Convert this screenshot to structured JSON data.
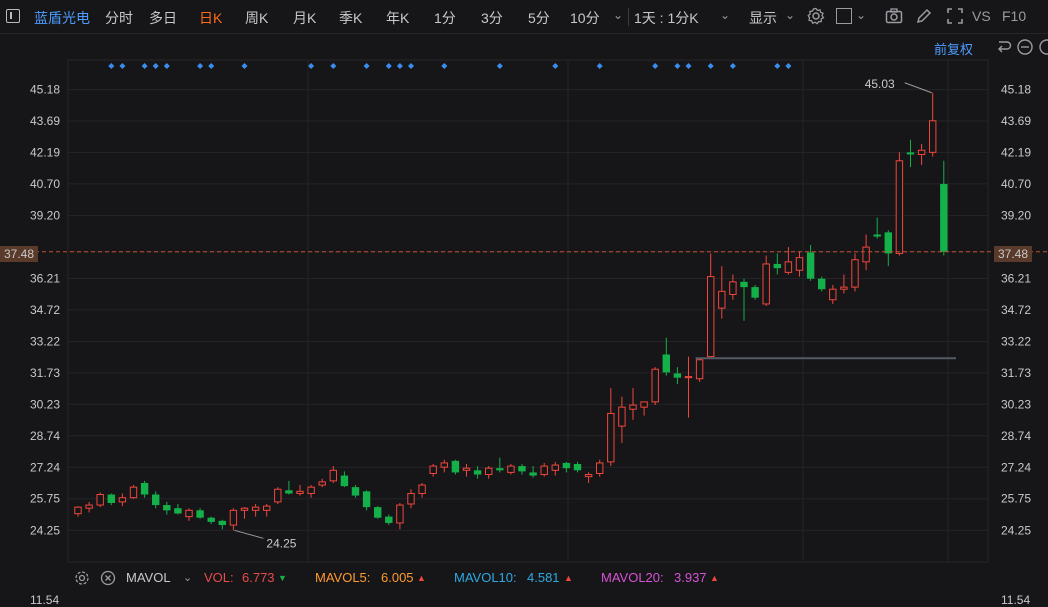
{
  "toolbar": {
    "stock_name": "蓝盾光电",
    "periods": [
      "分时",
      "多日",
      "日K",
      "周K",
      "月K",
      "季K",
      "年K",
      "1分",
      "3分",
      "5分",
      "10分"
    ],
    "active_period": "日K",
    "interval_dropdown": "1天 : 1分K",
    "display_label": "显示",
    "vs_label": "VS",
    "f10_label": "F10"
  },
  "adjust_label": "前复权",
  "colors": {
    "up": "#f0463c",
    "down": "#14b04a",
    "accent": "#ff6a1a",
    "link": "#4d9cff",
    "grid": "#242428",
    "last_line": "#c4502e",
    "dot": "#3a8df0"
  },
  "chart_data": {
    "type": "candlestick",
    "ylim": [
      23.5,
      45.9
    ],
    "y_ticks": [
      "45.18",
      "43.69",
      "42.19",
      "40.70",
      "39.20",
      "37.48",
      "36.21",
      "34.72",
      "33.22",
      "31.73",
      "30.23",
      "28.74",
      "27.24",
      "25.75",
      "24.25"
    ],
    "last_price": "37.48",
    "annotation_high": "45.03",
    "annotation_low": "24.25",
    "support_level": 32.42,
    "event_marker_days": [
      3,
      4,
      6,
      7,
      8,
      11,
      12,
      15,
      21,
      23,
      26,
      28,
      29,
      30,
      33,
      38,
      43,
      47,
      52,
      54,
      55,
      57,
      59,
      63,
      64
    ],
    "ohlc": [
      [
        25.04,
        25.4,
        24.9,
        25.35
      ],
      [
        25.3,
        25.6,
        25.1,
        25.45
      ],
      [
        25.45,
        26.05,
        25.35,
        25.95
      ],
      [
        25.95,
        26.0,
        25.45,
        25.55
      ],
      [
        25.6,
        26.0,
        25.4,
        25.8
      ],
      [
        25.8,
        26.4,
        25.75,
        26.3
      ],
      [
        26.5,
        26.6,
        25.8,
        25.95
      ],
      [
        25.95,
        26.1,
        25.3,
        25.45
      ],
      [
        25.45,
        25.6,
        25.0,
        25.2
      ],
      [
        25.3,
        25.5,
        25.0,
        25.05
      ],
      [
        24.9,
        25.3,
        24.7,
        25.2
      ],
      [
        25.2,
        25.3,
        24.8,
        24.85
      ],
      [
        24.85,
        24.9,
        24.55,
        24.65
      ],
      [
        24.7,
        24.75,
        24.3,
        24.5
      ],
      [
        24.5,
        25.3,
        24.25,
        25.2
      ],
      [
        25.2,
        25.35,
        24.8,
        25.3
      ],
      [
        25.2,
        25.5,
        24.9,
        25.35
      ],
      [
        25.2,
        25.5,
        24.9,
        25.4
      ],
      [
        25.6,
        26.3,
        25.5,
        26.2
      ],
      [
        26.15,
        26.6,
        25.95,
        26.0
      ],
      [
        26.0,
        26.4,
        25.9,
        26.1
      ],
      [
        26.0,
        26.4,
        25.8,
        26.3
      ],
      [
        26.4,
        26.7,
        26.3,
        26.55
      ],
      [
        26.6,
        27.3,
        26.5,
        27.1
      ],
      [
        26.85,
        27.05,
        26.3,
        26.35
      ],
      [
        26.3,
        26.4,
        25.8,
        25.9
      ],
      [
        26.1,
        26.15,
        25.2,
        25.35
      ],
      [
        25.35,
        25.4,
        24.8,
        24.85
      ],
      [
        24.9,
        25.0,
        24.5,
        24.6
      ],
      [
        24.6,
        25.55,
        24.3,
        25.45
      ],
      [
        25.5,
        26.2,
        25.3,
        26.0
      ],
      [
        26.0,
        26.5,
        25.8,
        26.4
      ],
      [
        26.95,
        27.4,
        26.8,
        27.3
      ],
      [
        27.25,
        27.6,
        27.0,
        27.45
      ],
      [
        27.55,
        27.6,
        26.9,
        27.0
      ],
      [
        27.1,
        27.4,
        26.8,
        27.2
      ],
      [
        27.1,
        27.3,
        26.7,
        26.9
      ],
      [
        26.9,
        27.3,
        26.7,
        27.2
      ],
      [
        27.2,
        27.7,
        27.0,
        27.1
      ],
      [
        27.0,
        27.4,
        26.9,
        27.3
      ],
      [
        27.3,
        27.4,
        26.9,
        27.05
      ],
      [
        27.0,
        27.3,
        26.75,
        26.85
      ],
      [
        26.9,
        27.45,
        26.8,
        27.3
      ],
      [
        27.1,
        27.5,
        26.85,
        27.35
      ],
      [
        27.45,
        27.5,
        27.0,
        27.2
      ],
      [
        27.4,
        27.5,
        27.0,
        27.1
      ],
      [
        26.8,
        27.0,
        26.5,
        26.9
      ],
      [
        26.95,
        27.6,
        26.8,
        27.45
      ],
      [
        27.5,
        31.0,
        27.3,
        29.8
      ],
      [
        29.2,
        30.6,
        28.4,
        30.1
      ],
      [
        30.0,
        31.0,
        29.5,
        30.2
      ],
      [
        30.1,
        30.3,
        29.7,
        30.35
      ],
      [
        30.35,
        32.0,
        30.2,
        31.9
      ],
      [
        32.6,
        33.4,
        31.6,
        31.75
      ],
      [
        31.7,
        32.0,
        31.2,
        31.5
      ],
      [
        31.5,
        32.5,
        29.6,
        31.55
      ],
      [
        31.45,
        32.4,
        31.3,
        32.35
      ],
      [
        32.5,
        37.4,
        32.4,
        36.3
      ],
      [
        34.8,
        36.8,
        34.3,
        35.6
      ],
      [
        35.45,
        36.4,
        35.2,
        36.05
      ],
      [
        36.05,
        36.2,
        34.2,
        35.8
      ],
      [
        35.8,
        35.9,
        35.2,
        35.3
      ],
      [
        35.0,
        37.3,
        34.9,
        36.9
      ],
      [
        36.9,
        37.4,
        36.4,
        36.7
      ],
      [
        36.5,
        37.7,
        36.4,
        37.0
      ],
      [
        36.6,
        37.5,
        36.3,
        37.2
      ],
      [
        37.45,
        37.8,
        36.1,
        36.2
      ],
      [
        36.2,
        36.3,
        35.6,
        35.7
      ],
      [
        35.2,
        35.9,
        35.0,
        35.7
      ],
      [
        35.7,
        36.4,
        35.5,
        35.8
      ],
      [
        35.8,
        37.4,
        35.6,
        37.1
      ],
      [
        37.0,
        38.3,
        36.6,
        37.7
      ],
      [
        38.3,
        39.1,
        38.1,
        38.2
      ],
      [
        38.4,
        38.5,
        36.8,
        37.4
      ],
      [
        37.4,
        42.2,
        37.3,
        41.8
      ],
      [
        42.2,
        42.8,
        41.5,
        42.1
      ],
      [
        42.1,
        42.6,
        41.6,
        42.3
      ],
      [
        42.2,
        45.03,
        42.0,
        43.7
      ],
      [
        40.7,
        41.8,
        37.3,
        37.48
      ]
    ]
  },
  "volume": {
    "indicator": "MAVOL",
    "vol_label": "VOL:",
    "vol_value": "6.773",
    "mavol5_label": "MAVOL5:",
    "mavol5_value": "6.005",
    "mavol10_label": "MAVOL10:",
    "mavol10_value": "4.581",
    "mavol20_label": "MAVOL20:",
    "mavol20_value": "3.937",
    "partial_tick": "11.54"
  }
}
